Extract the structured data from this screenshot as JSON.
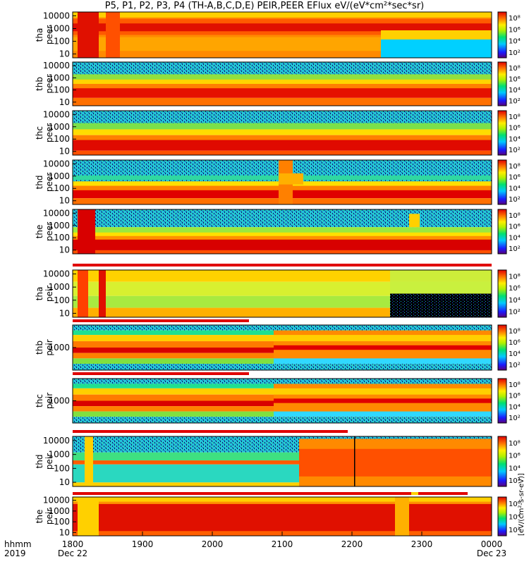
{
  "title": "P5, P1, P2, P3, P4 (TH-A,B,C,D,E) PEIR,PEER EFlux eV/(eV*cm²*sec*sr)",
  "time_axis": {
    "row1_label": "hhmm",
    "row2_label": "2019",
    "ticks": [
      "1800",
      "1900",
      "2000",
      "2100",
      "2200",
      "2300",
      "0000"
    ],
    "date_labels": [
      "Dec 22",
      "Dec 23"
    ]
  },
  "colorbar": {
    "ticks": [
      "10²",
      "10⁴",
      "10⁶",
      "10⁸"
    ],
    "unit_label": "[eV/(cm²-s-sr-eV)]"
  },
  "chart_data": {
    "type": "heatmap",
    "x_range": [
      "1800",
      "0000"
    ],
    "y_scale": "log",
    "color_scale": "log",
    "color_range": [
      100,
      100000000
    ],
    "panels": [
      {
        "name": "tha peer",
        "label1": "tha",
        "label2": "peer",
        "yticks": [
          "10",
          "100",
          "1000",
          "10000"
        ]
      },
      {
        "name": "thb peer",
        "label1": "thb",
        "label2": "peer",
        "yticks": [
          "10",
          "100",
          "1000",
          "10000"
        ]
      },
      {
        "name": "thc peer",
        "label1": "thc",
        "label2": "peer",
        "yticks": [
          "10",
          "100",
          "1000",
          "10000"
        ]
      },
      {
        "name": "thd peer",
        "label1": "thd",
        "label2": "peer",
        "yticks": [
          "10",
          "100",
          "1000",
          "10000"
        ]
      },
      {
        "name": "the peer",
        "label1": "the",
        "label2": "peer",
        "yticks": [
          "10",
          "100",
          "1000",
          "10000"
        ]
      },
      {
        "name": "tha peir",
        "label1": "tha",
        "label2": "peir",
        "yticks": [
          "10",
          "100",
          "1000",
          "10000"
        ]
      },
      {
        "name": "thb peir",
        "label1": "thb",
        "label2": "peir",
        "yticks": [
          "1000"
        ]
      },
      {
        "name": "thc peir",
        "label1": "thc",
        "label2": "peir",
        "yticks": [
          "1000"
        ]
      },
      {
        "name": "thd peir",
        "label1": "thd",
        "label2": "peir",
        "yticks": [
          "10",
          "100",
          "1000",
          "10000"
        ]
      },
      {
        "name": "the peir",
        "label1": "the",
        "label2": "peir",
        "yticks": [
          "10",
          "100",
          "1000",
          "10000"
        ]
      }
    ]
  }
}
